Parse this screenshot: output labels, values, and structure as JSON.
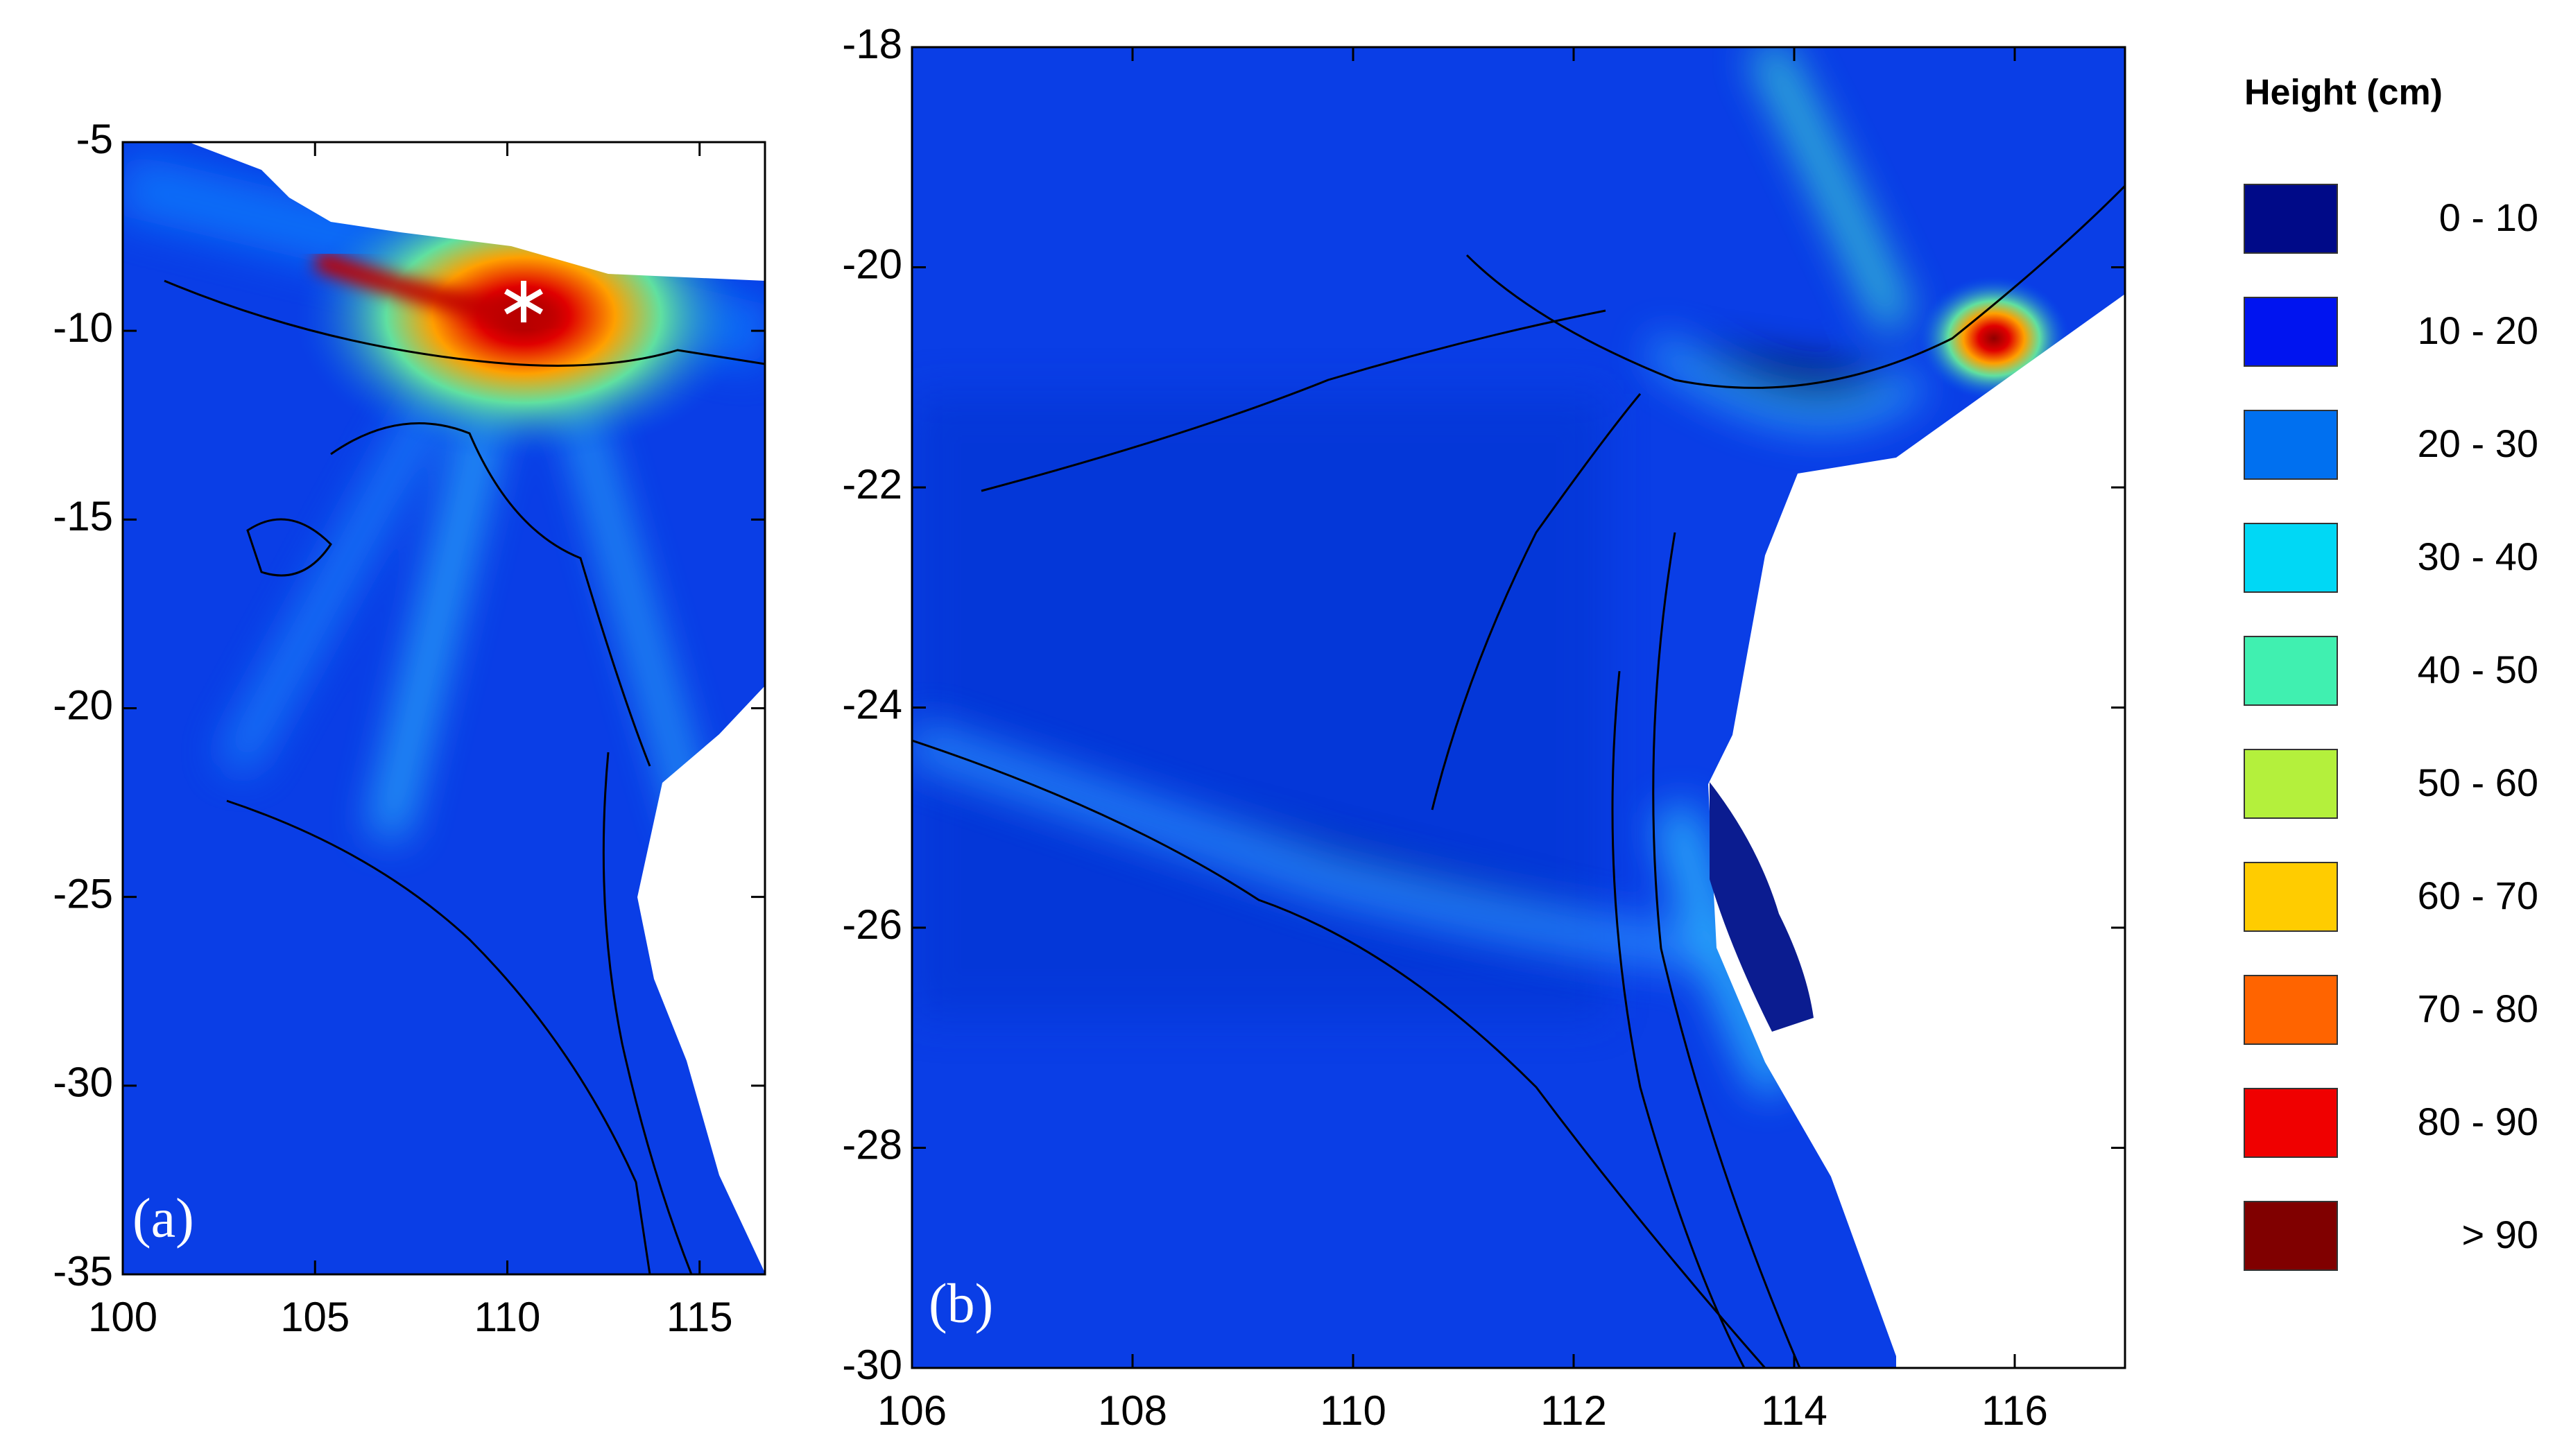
{
  "panels": [
    {
      "label": "(a)",
      "xlim": [
        100,
        116.7
      ],
      "ylim": [
        -35,
        -5
      ],
      "xticks": [
        100,
        105,
        110,
        115
      ],
      "yticks": [
        -5,
        -10,
        -15,
        -20,
        -25,
        -30,
        -35
      ]
    },
    {
      "label": "(b)",
      "xlim": [
        106,
        117
      ],
      "ylim": [
        -30,
        -18
      ],
      "xticks": [
        106,
        108,
        110,
        112,
        114,
        116
      ],
      "yticks": [
        -18,
        -20,
        -22,
        -24,
        -26,
        -28,
        -30
      ]
    }
  ],
  "legend": {
    "title": "Height (cm)",
    "items": [
      {
        "label": "0 - 10",
        "color": "#000a88"
      },
      {
        "label": "10 - 20",
        "color": "#0014f0"
      },
      {
        "label": "20 - 30",
        "color": "#0070f0"
      },
      {
        "label": "30 - 40",
        "color": "#00d8f5"
      },
      {
        "label": "40 - 50",
        "color": "#40f0b0"
      },
      {
        "label": "50 - 60",
        "color": "#b4f03c"
      },
      {
        "label": "60 - 70",
        "color": "#ffcc00"
      },
      {
        "label": "70 - 80",
        "color": "#ff6400"
      },
      {
        "label": "80 - 90",
        "color": "#f00000"
      },
      {
        "label": "> 90",
        "color": "#800000"
      }
    ]
  }
}
